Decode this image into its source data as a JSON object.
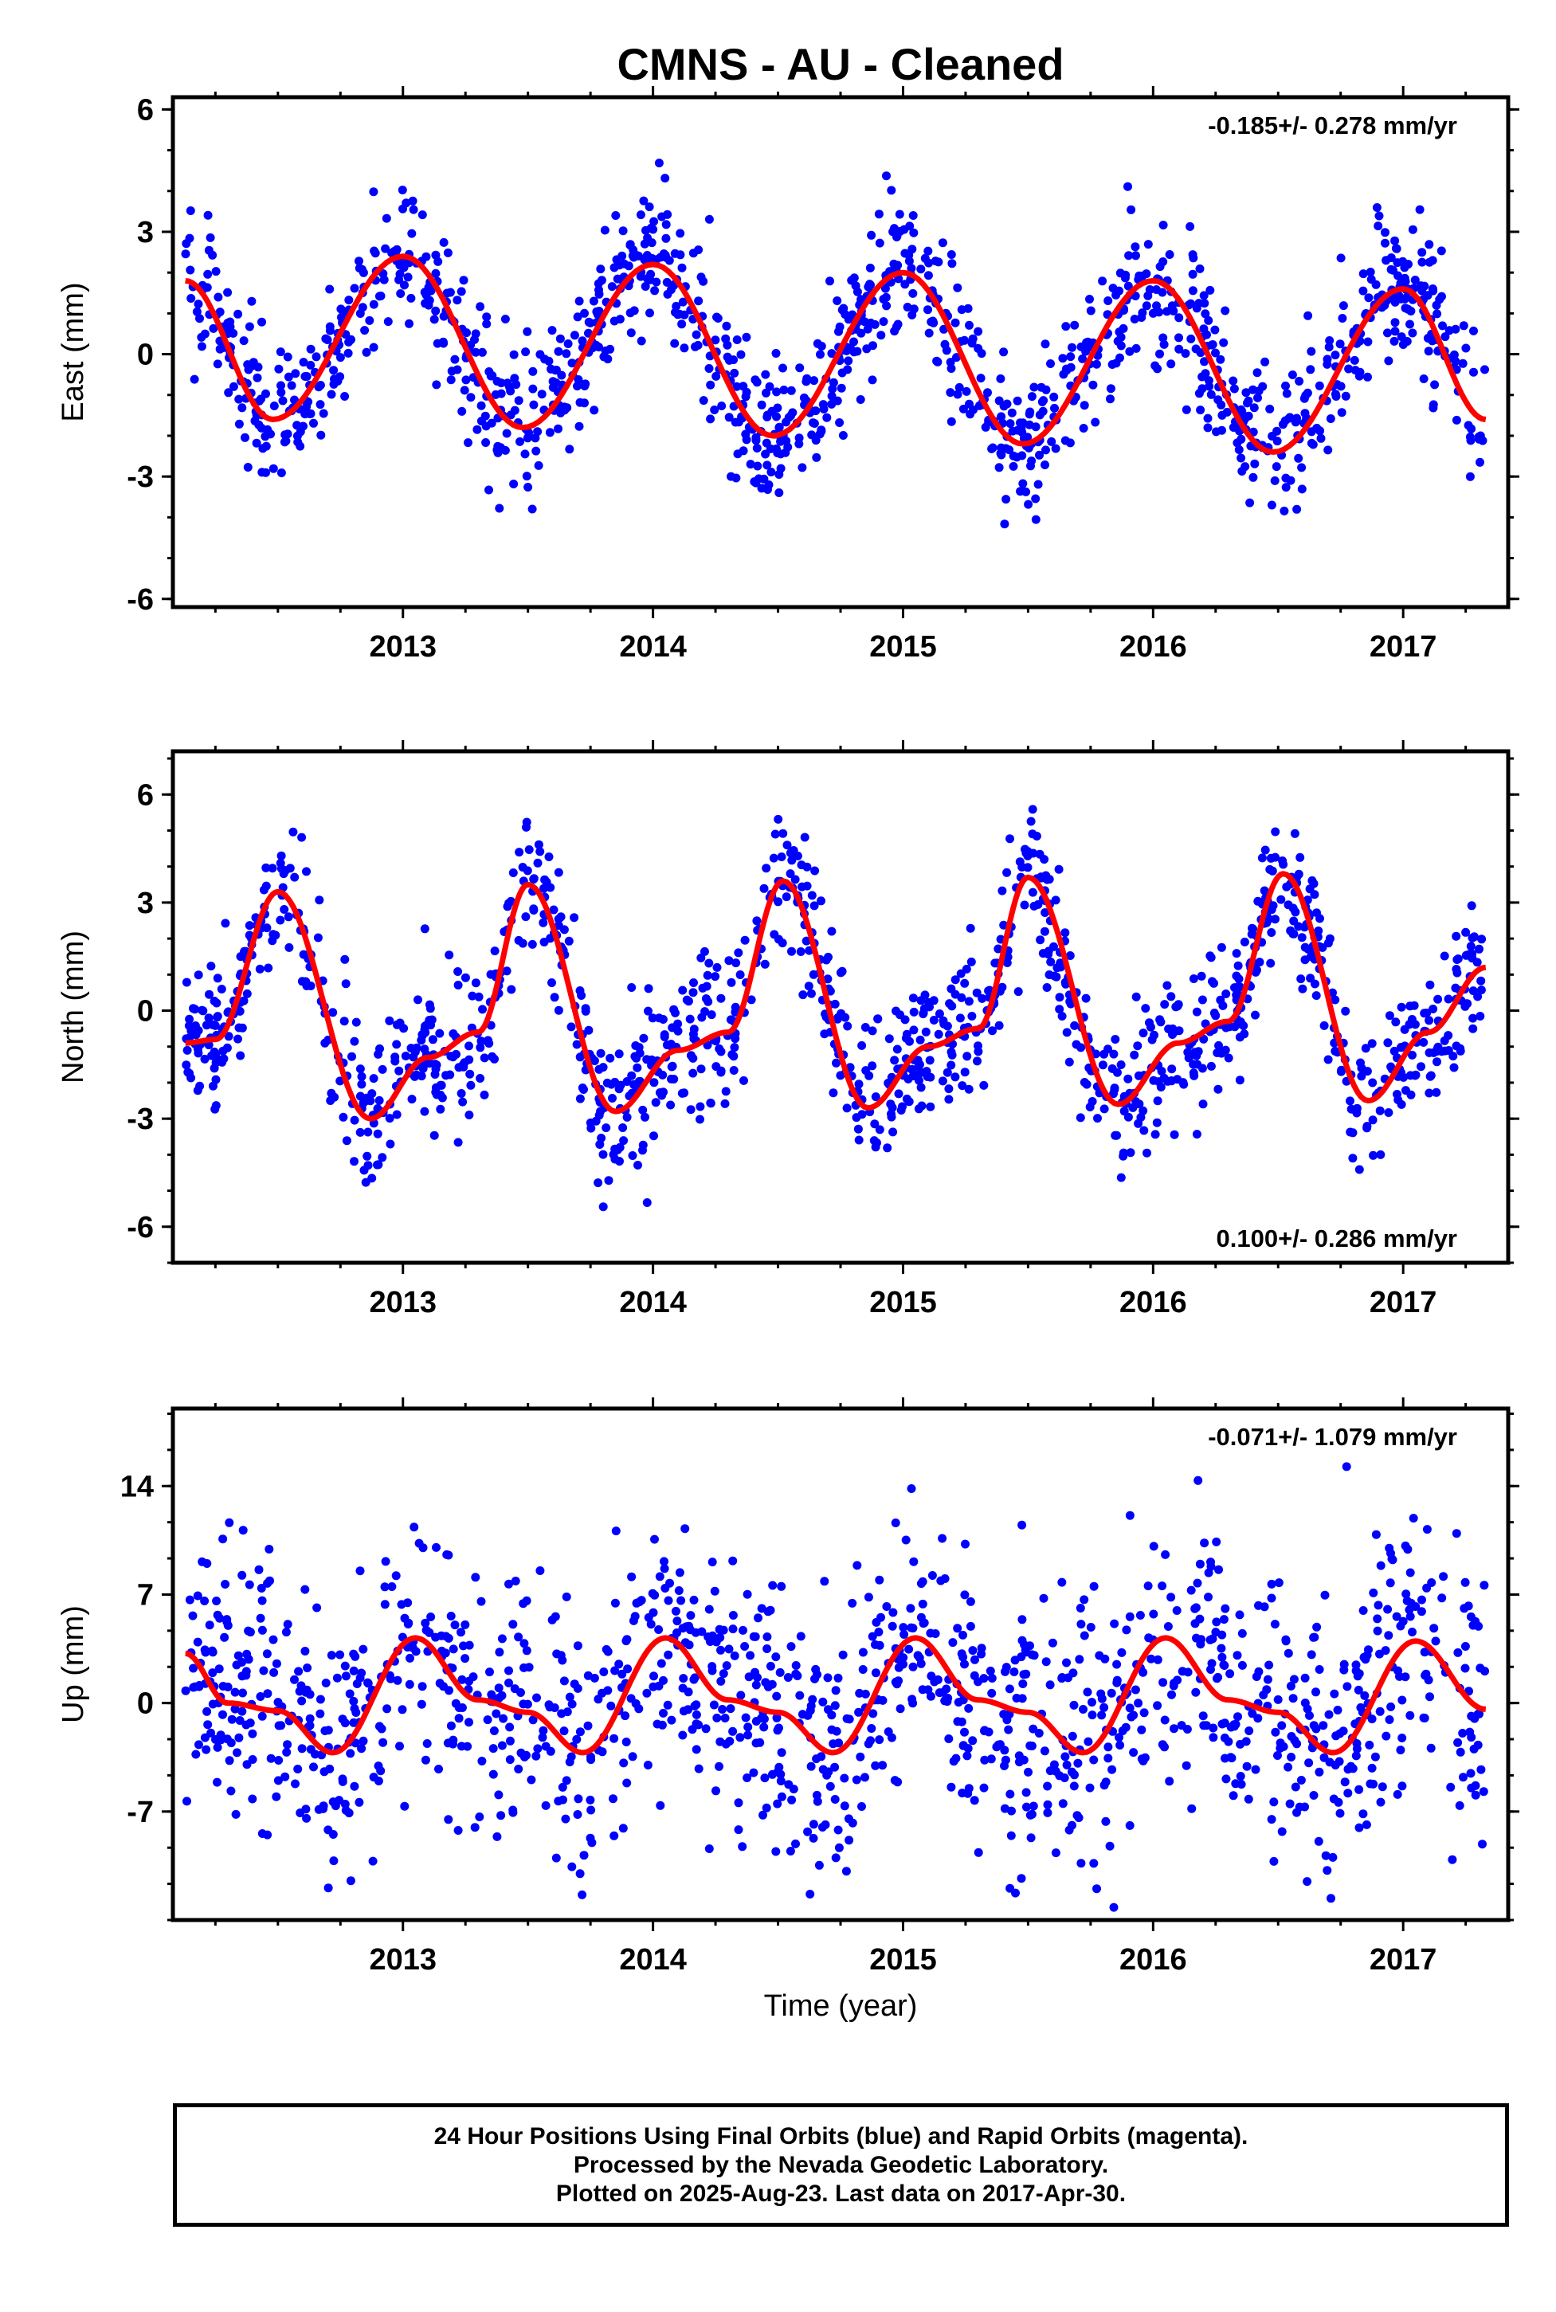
{
  "title": "CMNS  - AU - Cleaned",
  "chart_data": [
    {
      "type": "scatter",
      "panel": "east",
      "ylabel": "East (mm)",
      "xlabel": "",
      "rate_label": "-0.185+/- 0.278 mm/yr",
      "rate_label_position": "top-right",
      "xlim": [
        2012.08,
        2017.42
      ],
      "ylim": [
        -6.2,
        6.3
      ],
      "xticks": [
        2013,
        2014,
        2015,
        2016,
        2017
      ],
      "xtick_labels": [
        "2013",
        "2014",
        "2015",
        "2016",
        "2017"
      ],
      "yticks": [
        -6,
        -3,
        0,
        3,
        6
      ],
      "ytick_labels": [
        "-6",
        "-3",
        "0",
        "3",
        "6"
      ],
      "series": [
        {
          "role": "observed",
          "color": "#0000ff",
          "x_start": 2012.13,
          "x_end": 2017.33,
          "amplitude": 2.0,
          "phase_peak": 0.99,
          "offset": 0.4,
          "trend": -0.185,
          "noise": 0.9
        },
        {
          "role": "fit",
          "color": "#ff0000",
          "x": [
            2012.13,
            2012.48,
            2013.0,
            2013.48,
            2014.0,
            2014.48,
            2015.0,
            2015.48,
            2016.0,
            2016.48,
            2017.0,
            2017.33
          ],
          "y": [
            1.8,
            -1.6,
            2.4,
            -1.8,
            2.2,
            -2.0,
            2.0,
            -2.2,
            1.8,
            -2.4,
            1.6,
            -1.6
          ]
        }
      ]
    },
    {
      "type": "scatter",
      "panel": "north",
      "ylabel": "North (mm)",
      "xlabel": "",
      "rate_label": "0.100+/- 0.286 mm/yr",
      "rate_label_position": "bottom-right",
      "xlim": [
        2012.08,
        2017.42
      ],
      "ylim": [
        -7.0,
        7.2
      ],
      "xticks": [
        2013,
        2014,
        2015,
        2016,
        2017
      ],
      "xtick_labels": [
        "2013",
        "2014",
        "2015",
        "2016",
        "2017"
      ],
      "yticks": [
        -6,
        -3,
        0,
        3,
        6
      ],
      "ytick_labels": [
        "-6",
        "-3",
        "0",
        "3",
        "6"
      ],
      "series": [
        {
          "role": "observed",
          "color": "#0000ff",
          "x_start": 2012.13,
          "x_end": 2017.33,
          "amplitude": 3.0,
          "phase_peak": 0.5,
          "offset": 0.2,
          "trend": 0.1,
          "noise": 1.0
        },
        {
          "role": "fit",
          "color": "#ff0000",
          "x": [
            2012.13,
            2012.25,
            2012.5,
            2012.87,
            2013.1,
            2013.3,
            2013.5,
            2013.85,
            2014.1,
            2014.3,
            2014.52,
            2014.86,
            2015.1,
            2015.3,
            2015.5,
            2015.86,
            2016.1,
            2016.3,
            2016.52,
            2016.86,
            2017.1,
            2017.33
          ],
          "y": [
            -0.9,
            -0.8,
            3.3,
            -3.0,
            -1.3,
            -0.6,
            3.5,
            -2.8,
            -1.1,
            -0.6,
            3.6,
            -2.7,
            -1.0,
            -0.5,
            3.7,
            -2.6,
            -0.9,
            -0.3,
            3.8,
            -2.5,
            -0.6,
            1.2
          ]
        }
      ]
    },
    {
      "type": "scatter",
      "panel": "up",
      "ylabel": "Up (mm)",
      "xlabel": "Time (year)",
      "rate_label": "-0.071+/- 1.079 mm/yr",
      "rate_label_position": "top-right",
      "xlim": [
        2012.08,
        2017.42
      ],
      "ylim": [
        -14.0,
        19.0
      ],
      "xticks": [
        2013,
        2014,
        2015,
        2016,
        2017
      ],
      "xtick_labels": [
        "2013",
        "2014",
        "2015",
        "2016",
        "2017"
      ],
      "yticks": [
        -7,
        0,
        7,
        14
      ],
      "ytick_labels": [
        "-7",
        "0",
        "7",
        "14"
      ],
      "series": [
        {
          "role": "observed",
          "color": "#0000ff",
          "x_start": 2012.13,
          "x_end": 2017.33,
          "amplitude": 3.5,
          "phase_peak": 0.02,
          "offset": 0.0,
          "trend": -0.071,
          "noise": 4.2
        },
        {
          "role": "fit",
          "color": "#ff0000",
          "x": [
            2012.13,
            2012.3,
            2012.5,
            2012.72,
            2013.05,
            2013.3,
            2013.5,
            2013.72,
            2014.05,
            2014.3,
            2014.5,
            2014.72,
            2015.05,
            2015.3,
            2015.5,
            2015.72,
            2016.05,
            2016.3,
            2016.5,
            2016.72,
            2017.05,
            2017.33
          ],
          "y": [
            3.2,
            0.0,
            -0.5,
            -3.2,
            4.2,
            0.2,
            -0.6,
            -3.2,
            4.2,
            0.2,
            -0.6,
            -3.2,
            4.2,
            0.2,
            -0.6,
            -3.2,
            4.2,
            0.2,
            -0.6,
            -3.2,
            4.0,
            -0.4
          ]
        }
      ]
    }
  ],
  "footer": {
    "line1": "24 Hour Positions Using Final Orbits (blue) and Rapid Orbits (magenta).",
    "line2": "Processed by the Nevada Geodetic Laboratory.",
    "line3": "Plotted on 2025-Aug-23. Last data on 2017-Apr-30."
  }
}
